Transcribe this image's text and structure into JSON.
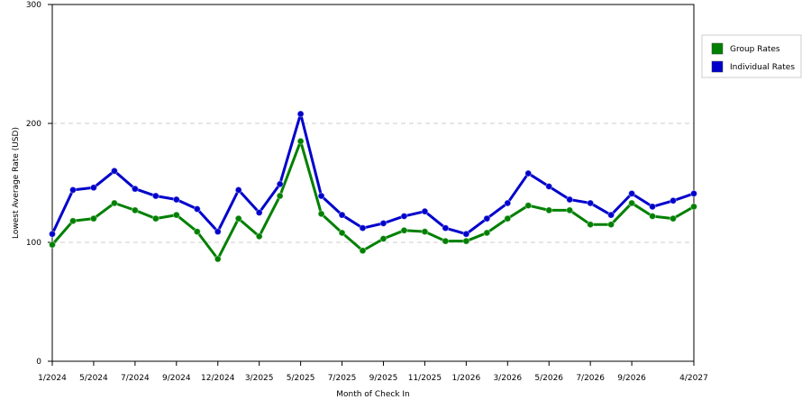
{
  "chart_data": {
    "type": "line",
    "x_label": "Month of Check In",
    "y_label": "Lowest Average Rate (USD)",
    "categories": [
      "1/2024",
      null,
      "5/2024",
      null,
      "7/2024",
      null,
      "9/2024",
      null,
      "12/2024",
      null,
      "3/2025",
      null,
      "5/2025",
      null,
      "7/2025",
      null,
      "9/2025",
      null,
      "11/2025",
      null,
      "1/2026",
      null,
      "3/2026",
      null,
      "5/2026",
      null,
      "7/2026",
      null,
      "9/2026",
      null,
      null,
      "4/2027"
    ],
    "series": [
      {
        "name": "Group Rates",
        "color": "#008000",
        "values": [
          98,
          118,
          120,
          133,
          127,
          120,
          123,
          109,
          86,
          120,
          105,
          139,
          185,
          124,
          108,
          93,
          103,
          110,
          109,
          101,
          101,
          108,
          120,
          131,
          127,
          127,
          115,
          115,
          133,
          122,
          120,
          130
        ]
      },
      {
        "name": "Individual Rates",
        "color": "#0000cc",
        "values": [
          107,
          144,
          146,
          160,
          145,
          139,
          136,
          128,
          109,
          144,
          125,
          149,
          208,
          139,
          123,
          112,
          116,
          122,
          126,
          112,
          107,
          120,
          133,
          158,
          147,
          136,
          133,
          123,
          141,
          130,
          135,
          141
        ]
      }
    ],
    "ylim": [
      0,
      300
    ],
    "yticks": [
      0,
      100,
      200,
      300
    ],
    "grid": true,
    "legend": "right"
  }
}
